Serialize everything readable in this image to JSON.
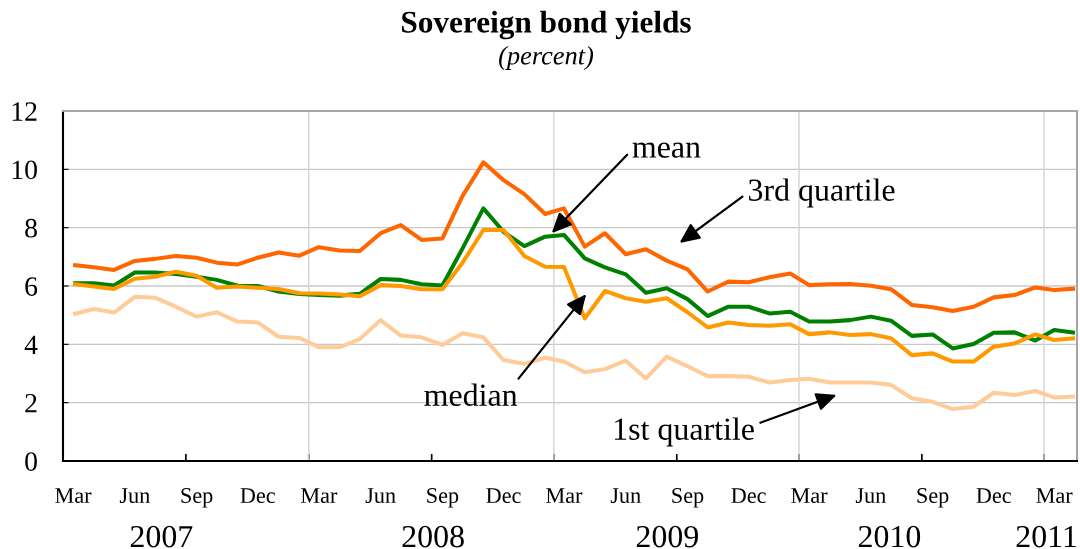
{
  "chart_data": {
    "type": "line",
    "title": "Sovereign bond yields",
    "subtitle": "(percent)",
    "x": [
      "2007-03",
      "2007-04",
      "2007-05",
      "2007-06",
      "2007-07",
      "2007-08",
      "2007-09",
      "2007-10",
      "2007-11",
      "2007-12",
      "2008-01",
      "2008-02",
      "2008-03",
      "2008-04",
      "2008-05",
      "2008-06",
      "2008-07",
      "2008-08",
      "2008-09",
      "2008-10",
      "2008-11",
      "2008-12",
      "2009-01",
      "2009-02",
      "2009-03",
      "2009-04",
      "2009-05",
      "2009-06",
      "2009-07",
      "2009-08",
      "2009-09",
      "2009-10",
      "2009-11",
      "2009-12",
      "2010-01",
      "2010-02",
      "2010-03",
      "2010-04",
      "2010-05",
      "2010-06",
      "2010-07",
      "2010-08",
      "2010-09",
      "2010-10",
      "2010-11",
      "2010-12",
      "2011-01",
      "2011-02",
      "2011-03",
      "2011-04"
    ],
    "series": [
      {
        "name": "1st quartile",
        "color": "#ffcc99",
        "values": [
          5.03,
          5.21,
          5.09,
          5.63,
          5.6,
          5.29,
          4.95,
          5.1,
          4.78,
          4.75,
          4.26,
          4.22,
          3.9,
          3.9,
          4.18,
          4.83,
          4.3,
          4.24,
          3.98,
          4.38,
          4.24,
          3.46,
          3.33,
          3.54,
          3.41,
          3.04,
          3.15,
          3.44,
          2.83,
          3.58,
          3.25,
          2.91,
          2.91,
          2.89,
          2.69,
          2.78,
          2.82,
          2.69,
          2.69,
          2.69,
          2.61,
          2.15,
          2.03,
          1.78,
          1.86,
          2.34,
          2.26,
          2.4,
          2.18,
          2.21
        ]
      },
      {
        "name": "3rd quartile",
        "color": "#ff6600",
        "values": [
          6.72,
          6.64,
          6.55,
          6.86,
          6.93,
          7.03,
          6.97,
          6.8,
          6.74,
          6.97,
          7.15,
          7.04,
          7.33,
          7.22,
          7.2,
          7.81,
          8.09,
          7.58,
          7.63,
          9.09,
          10.24,
          9.63,
          9.15,
          8.47,
          8.66,
          7.35,
          7.81,
          7.09,
          7.26,
          6.87,
          6.57,
          5.81,
          6.15,
          6.13,
          6.3,
          6.43,
          6.03,
          6.06,
          6.07,
          6.01,
          5.89,
          5.35,
          5.27,
          5.14,
          5.29,
          5.61,
          5.69,
          5.95,
          5.86,
          5.91
        ]
      },
      {
        "name": "mean",
        "color": "#008000",
        "values": [
          6.09,
          6.09,
          6.02,
          6.46,
          6.46,
          6.41,
          6.32,
          6.21,
          6.01,
          6.0,
          5.81,
          5.73,
          5.69,
          5.67,
          5.73,
          6.24,
          6.21,
          6.06,
          6.02,
          7.29,
          8.66,
          7.86,
          7.37,
          7.69,
          7.75,
          6.95,
          6.64,
          6.4,
          5.77,
          5.92,
          5.55,
          4.97,
          5.29,
          5.29,
          5.06,
          5.12,
          4.78,
          4.78,
          4.83,
          4.95,
          4.81,
          4.29,
          4.34,
          3.86,
          4.01,
          4.4,
          4.41,
          4.13,
          4.49,
          4.4
        ]
      },
      {
        "name": "median",
        "color": "#ff9900",
        "values": [
          6.07,
          5.98,
          5.9,
          6.25,
          6.32,
          6.49,
          6.35,
          5.94,
          5.98,
          5.94,
          5.9,
          5.75,
          5.74,
          5.71,
          5.65,
          6.03,
          6.0,
          5.89,
          5.89,
          6.8,
          7.92,
          7.92,
          7.03,
          6.66,
          6.65,
          4.89,
          5.83,
          5.58,
          5.46,
          5.58,
          5.1,
          4.58,
          4.75,
          4.66,
          4.64,
          4.69,
          4.35,
          4.41,
          4.32,
          4.35,
          4.21,
          3.63,
          3.69,
          3.41,
          3.41,
          3.92,
          4.03,
          4.34,
          4.15,
          4.21
        ]
      }
    ],
    "xlim": [
      "2007-02-14",
      "2011-04-04"
    ],
    "xticks": [
      {
        "value": "2007-03",
        "label": "Mar"
      },
      {
        "value": "2007-06",
        "label": "Jun"
      },
      {
        "value": "2007-09",
        "label": "Sep"
      },
      {
        "value": "2007-12",
        "label": "Dec"
      },
      {
        "value": "2008-03",
        "label": "Mar"
      },
      {
        "value": "2008-06",
        "label": "Jun"
      },
      {
        "value": "2008-09",
        "label": "Sep"
      },
      {
        "value": "2008-12",
        "label": "Dec"
      },
      {
        "value": "2009-03",
        "label": "Mar"
      },
      {
        "value": "2009-06",
        "label": "Jun"
      },
      {
        "value": "2009-09",
        "label": "Sep"
      },
      {
        "value": "2009-12",
        "label": "Dec"
      },
      {
        "value": "2010-03",
        "label": "Mar"
      },
      {
        "value": "2010-06",
        "label": "Jun"
      },
      {
        "value": "2010-09",
        "label": "Sep"
      },
      {
        "value": "2010-12",
        "label": "Dec"
      },
      {
        "value": "2011-03",
        "label": "Mar"
      },
      {
        "value": "2007-08-16",
        "label": null
      },
      {
        "value": "2008-02-15",
        "label": null
      },
      {
        "value": "2008-08-16",
        "label": null
      },
      {
        "value": "2009-02-14",
        "label": null
      },
      {
        "value": "2009-08-16",
        "label": null
      },
      {
        "value": "2010-02-14",
        "label": null
      },
      {
        "value": "2010-08-16",
        "label": null
      },
      {
        "value": "2011-02-14",
        "label": null
      }
    ],
    "ylim": [
      0,
      12
    ],
    "yticks": [
      0,
      2,
      4,
      6,
      8,
      10,
      12
    ],
    "grid": "y",
    "line_style": "solid",
    "ref_lines": [
      {
        "axis": "x",
        "value": "2008-02-15",
        "color": "#d4d4d4"
      },
      {
        "axis": "x",
        "value": "2009-02-14",
        "color": "#d4d4d4"
      },
      {
        "axis": "x",
        "value": "2010-02-14",
        "color": "#d4d4d4"
      },
      {
        "axis": "x",
        "value": "2011-02-14",
        "color": "#d4d4d4"
      }
    ],
    "annotations": [
      "2007",
      "2008",
      "2009",
      "2010",
      "2011"
    ]
  }
}
